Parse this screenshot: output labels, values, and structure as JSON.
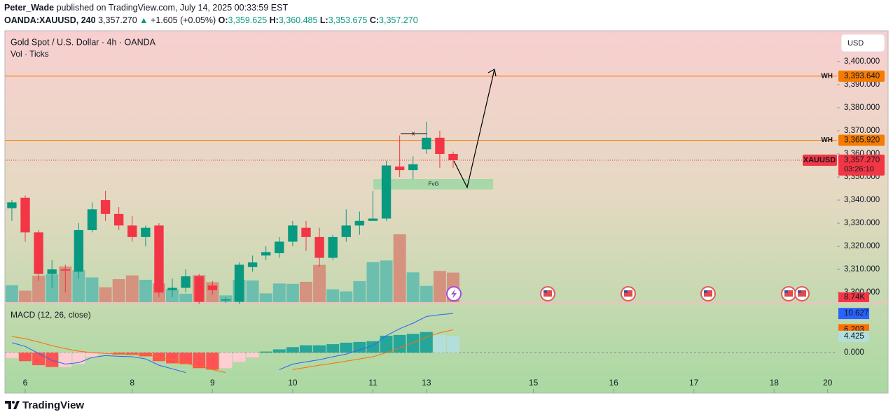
{
  "header": {
    "publisher": "Peter_Wade",
    "published": "published on TradingView.com, July 14, 2025 00:33:59 EST",
    "symbol": "OANDA:XAUUSD, 240",
    "last": "3,357.270",
    "arrow": "▲",
    "change": "+1.605 (+0.05%)",
    "ohlc": [
      {
        "label": "O:",
        "value": "3,359.625"
      },
      {
        "label": "H:",
        "value": "3,360.485"
      },
      {
        "label": "L:",
        "value": "3,353.675"
      },
      {
        "label": "C:",
        "value": "3,357.270"
      }
    ]
  },
  "chart_data": {
    "type": "candlestick",
    "title": "Gold Spot / U.S. Dollar · 4h · OANDA",
    "subtitle": "Vol · Ticks",
    "currency": "USD",
    "up_color": "#089981",
    "down_color": "#f23645",
    "open": [
      3336.5,
      3341,
      3326,
      3308,
      3310,
      3309,
      3327,
      3340,
      3334,
      3329,
      3324,
      3329,
      3301,
      3302,
      3307,
      3303,
      3296.5,
      3296,
      3311,
      3316,
      3317,
      3322,
      3328,
      3324,
      3315,
      3324,
      3329,
      3331,
      3332,
      3354.5,
      3353,
      3362,
      3367,
      3360
    ],
    "high": [
      3340,
      3342,
      3327,
      3314,
      3312,
      3330,
      3339,
      3344,
      3337,
      3333,
      3329,
      3330,
      3306,
      3310,
      3308,
      3305,
      3298,
      3313,
      3316,
      3320,
      3324,
      3331,
      3331,
      3328,
      3325,
      3336,
      3335,
      3344,
      3357,
      3368,
      3359,
      3374,
      3370,
      3361
    ],
    "low": [
      3331,
      3322,
      3305,
      3302,
      3300,
      3306,
      3326,
      3331,
      3327,
      3322,
      3320,
      3298,
      3298,
      3300,
      3295,
      3299,
      3295.5,
      3295,
      3309,
      3314,
      3315,
      3320,
      3318,
      3311,
      3314,
      3322,
      3325,
      3331,
      3331,
      3350,
      3349,
      3360,
      3354,
      3354
    ],
    "close": [
      3339,
      3326,
      3308,
      3310,
      3309.5,
      3327,
      3336,
      3334,
      3329,
      3324,
      3328,
      3300,
      3302,
      3307,
      3296,
      3301,
      3297,
      3312,
      3313,
      3317.5,
      3322,
      3329,
      3324,
      3315,
      3324,
      3329,
      3331,
      3332,
      3355,
      3353,
      3355.5,
      3367,
      3360,
      3357.27
    ],
    "xlim": [
      -0.52,
      61.7
    ],
    "xticks": [
      {
        "value": 1,
        "label": "6"
      },
      {
        "value": 9,
        "label": "8"
      },
      {
        "value": 15,
        "label": "9"
      },
      {
        "value": 21,
        "label": "10"
      },
      {
        "value": 27,
        "label": "11"
      },
      {
        "value": 31,
        "label": "13"
      },
      {
        "value": 39,
        "label": "15"
      },
      {
        "value": 45,
        "label": "16"
      },
      {
        "value": 51,
        "label": "17"
      },
      {
        "value": 57,
        "label": "18"
      },
      {
        "value": 61,
        "label": "20"
      }
    ],
    "ylim": [
      3295.8,
      3413.3
    ],
    "yticks": [
      {
        "value": 3300,
        "label": "3,300.000"
      },
      {
        "value": 3310,
        "label": "3,310.000"
      },
      {
        "value": 3320,
        "label": "3,320.000"
      },
      {
        "value": 3330,
        "label": "3,330.000"
      },
      {
        "value": 3340,
        "label": "3,340.000"
      },
      {
        "value": 3350,
        "label": "3,350.000"
      },
      {
        "value": 3360,
        "label": "3,360.000"
      },
      {
        "value": 3370,
        "label": "3,370.000"
      },
      {
        "value": 3380,
        "label": "3,380.000"
      },
      {
        "value": 3390,
        "label": "3,390.000"
      },
      {
        "value": 3400,
        "label": "3,400.000"
      }
    ],
    "hlines": [
      {
        "name": "WH",
        "value": 3393.64,
        "label": "3,393.640",
        "color": "#f57c00"
      },
      {
        "name": "WH",
        "value": 3365.92,
        "label": "3,365.920",
        "color": "#f57c00"
      }
    ],
    "last_price": {
      "symbol": "XAUUSD",
      "value": 3357.27,
      "label": "3,357.270",
      "countdown": "03:26:10"
    },
    "annotations": {
      "zone": "FvG",
      "marker": "x"
    },
    "volume": {
      "values": [
        5000,
        3400,
        7800,
        8200,
        10500,
        9400,
        7300,
        4400,
        6800,
        7900,
        6600,
        5500,
        3800,
        2500,
        8000,
        5900,
        2000,
        6600,
        6400,
        2600,
        5500,
        5400,
        6000,
        11000,
        3800,
        3200,
        6200,
        11800,
        12300,
        20000,
        8800,
        4800,
        9200,
        8740
      ],
      "last_label": "8.74K",
      "ylim": [
        0,
        80000
      ],
      "up_color": "#6cbfae",
      "down_color": "#d4927f"
    },
    "macd": {
      "title": "MACD (12, 26, close)",
      "ylim": [
        -6.8,
        13.5
      ],
      "yticks": [
        {
          "value": 0,
          "label": "0.000"
        }
      ],
      "macd": {
        "color": "#2962ff",
        "label": "10.627",
        "values": [
          2.7,
          1.7,
          -0.2,
          -2.1,
          -3.1,
          -2.7,
          -1.3,
          -0.8,
          -1.0,
          -1.1,
          -1.7,
          -3.4,
          -4.4,
          -5.4,
          null,
          null,
          null,
          null,
          null,
          null,
          -4.6,
          -3.1,
          -2.5,
          -1.9,
          -1.1,
          -0.4,
          0.8,
          1.9,
          4.6,
          6.5,
          8.0,
          9.8,
          10.3,
          10.627
        ]
      },
      "signal": {
        "color": "#ff6d00",
        "label": "6.203",
        "values": [
          4.4,
          3.8,
          2.9,
          1.9,
          1.1,
          0.4,
          0,
          -0.2,
          -0.4,
          -0.4,
          -0.6,
          -1.1,
          -1.9,
          -2.9,
          -3.6,
          -4.6,
          -5.4,
          null,
          null,
          null,
          null,
          -4.6,
          -4.0,
          -3.4,
          -2.9,
          -2.3,
          -1.7,
          -1.1,
          0,
          1.3,
          2.7,
          4.2,
          5.4,
          6.203
        ]
      },
      "histogram": {
        "label": "4.425",
        "colors": {
          "pos_up": "#26a69a",
          "pos_down": "#b2dfdb",
          "neg_down": "#ff5252",
          "neg_up": "#ffcdd2"
        },
        "values": [
          -1.5,
          -2.3,
          -3.4,
          -3.9,
          -3.9,
          -3.1,
          -1.2,
          -0.4,
          -0.5,
          -0.6,
          -1.0,
          -2.3,
          -2.9,
          -3.1,
          -4.2,
          -4.6,
          -4.2,
          -2.5,
          -1.3,
          0.3,
          0.9,
          1.5,
          2.0,
          2.0,
          2.3,
          2.7,
          2.9,
          3.1,
          4.6,
          4.8,
          5.1,
          5.6,
          4.8,
          4.425
        ]
      }
    }
  },
  "footer": {
    "logo": "TradingView"
  }
}
